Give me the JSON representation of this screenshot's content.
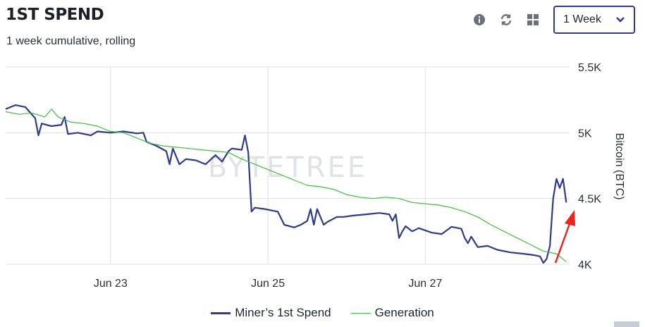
{
  "header": {
    "title": "1ST SPEND",
    "subtitle": "1 week cumulative, rolling"
  },
  "toolbar": {
    "icons": [
      "info-icon",
      "refresh-icon",
      "grid-icon"
    ],
    "range_select": {
      "value": "1 Week"
    }
  },
  "watermark": "BYTETREE",
  "chart_data": {
    "type": "line",
    "title": "1ST SPEND",
    "subtitle": "1 week cumulative, rolling",
    "ylabel": "Bitcoin (BTC)",
    "xlabel": "",
    "ylim": [
      4000,
      5500
    ],
    "yticks": [
      4000,
      4500,
      5000,
      5500
    ],
    "ytick_labels": [
      "4K",
      "4.5K",
      "5K",
      "5.5K"
    ],
    "xlim": [
      "2021-06-21T16:00",
      "2021-06-28T20:00"
    ],
    "xticks": [
      "2021-06-23T00:00",
      "2021-06-25T00:00",
      "2021-06-27T00:00"
    ],
    "xtick_labels": [
      "Jun 23",
      "Jun 25",
      "Jun 27"
    ],
    "grid": true,
    "legend_position": "bottom",
    "series": [
      {
        "name": "Miner’s 1st Spend",
        "color": "#2e3a8c",
        "points": [
          [
            "2021-06-21T16:00",
            5180
          ],
          [
            "2021-06-21T19:00",
            5210
          ],
          [
            "2021-06-21T22:00",
            5195
          ],
          [
            "2021-06-22T01:00",
            5110
          ],
          [
            "2021-06-22T02:00",
            4980
          ],
          [
            "2021-06-22T03:00",
            5070
          ],
          [
            "2021-06-22T06:00",
            5050
          ],
          [
            "2021-06-22T09:00",
            5060
          ],
          [
            "2021-06-22T10:00",
            5120
          ],
          [
            "2021-06-22T11:00",
            4990
          ],
          [
            "2021-06-22T14:00",
            5000
          ],
          [
            "2021-06-22T18:00",
            4980
          ],
          [
            "2021-06-22T20:00",
            5010
          ],
          [
            "2021-06-23T00:00",
            5000
          ],
          [
            "2021-06-23T04:00",
            5010
          ],
          [
            "2021-06-23T08:00",
            4995
          ],
          [
            "2021-06-23T10:00",
            5000
          ],
          [
            "2021-06-23T11:00",
            4930
          ],
          [
            "2021-06-23T14:00",
            4900
          ],
          [
            "2021-06-23T17:00",
            4860
          ],
          [
            "2021-06-23T18:00",
            4760
          ],
          [
            "2021-06-23T19:00",
            4880
          ],
          [
            "2021-06-23T21:00",
            4760
          ],
          [
            "2021-06-23T23:00",
            4800
          ],
          [
            "2021-06-24T02:00",
            4790
          ],
          [
            "2021-06-24T05:00",
            4760
          ],
          [
            "2021-06-24T08:00",
            4830
          ],
          [
            "2021-06-24T10:00",
            4780
          ],
          [
            "2021-06-24T12:00",
            4860
          ],
          [
            "2021-06-24T13:00",
            4880
          ],
          [
            "2021-06-24T16:00",
            4870
          ],
          [
            "2021-06-24T17:00",
            4980
          ],
          [
            "2021-06-24T18:00",
            4850
          ],
          [
            "2021-06-24T19:00",
            4400
          ],
          [
            "2021-06-24T20:00",
            4430
          ],
          [
            "2021-06-24T23:00",
            4420
          ],
          [
            "2021-06-25T03:00",
            4400
          ],
          [
            "2021-06-25T05:00",
            4300
          ],
          [
            "2021-06-25T08:00",
            4280
          ],
          [
            "2021-06-25T10:00",
            4300
          ],
          [
            "2021-06-25T12:00",
            4330
          ],
          [
            "2021-06-25T13:00",
            4420
          ],
          [
            "2021-06-25T14:00",
            4300
          ],
          [
            "2021-06-25T15:00",
            4420
          ],
          [
            "2021-06-25T17:00",
            4300
          ],
          [
            "2021-06-25T18:00",
            4320
          ],
          [
            "2021-06-25T21:00",
            4360
          ],
          [
            "2021-06-25T23:00",
            4360
          ],
          [
            "2021-06-26T02:00",
            4370
          ],
          [
            "2021-06-26T06:00",
            4380
          ],
          [
            "2021-06-26T10:00",
            4390
          ],
          [
            "2021-06-26T13:00",
            4380
          ],
          [
            "2021-06-26T14:00",
            4330
          ],
          [
            "2021-06-26T15:00",
            4380
          ],
          [
            "2021-06-26T16:00",
            4200
          ],
          [
            "2021-06-26T17:00",
            4250
          ],
          [
            "2021-06-26T18:00",
            4290
          ],
          [
            "2021-06-26T20:00",
            4250
          ],
          [
            "2021-06-26T22:00",
            4275
          ],
          [
            "2021-06-27T02:00",
            4240
          ],
          [
            "2021-06-27T05:00",
            4230
          ],
          [
            "2021-06-27T08:00",
            4285
          ],
          [
            "2021-06-27T11:00",
            4270
          ],
          [
            "2021-06-27T12:00",
            4200
          ],
          [
            "2021-06-27T13:00",
            4160
          ],
          [
            "2021-06-27T14:00",
            4210
          ],
          [
            "2021-06-27T16:00",
            4130
          ],
          [
            "2021-06-27T19:00",
            4140
          ],
          [
            "2021-06-27T22:00",
            4110
          ],
          [
            "2021-06-28T02:00",
            4090
          ],
          [
            "2021-06-28T06:00",
            4080
          ],
          [
            "2021-06-28T09:00",
            4070
          ],
          [
            "2021-06-28T11:00",
            4060
          ],
          [
            "2021-06-28T12:00",
            4010
          ],
          [
            "2021-06-28T13:00",
            4040
          ],
          [
            "2021-06-28T14:00",
            4140
          ],
          [
            "2021-06-28T15:00",
            4500
          ],
          [
            "2021-06-28T16:00",
            4650
          ],
          [
            "2021-06-28T17:00",
            4580
          ],
          [
            "2021-06-28T18:00",
            4650
          ],
          [
            "2021-06-28T19:00",
            4470
          ]
        ]
      },
      {
        "name": "Generation",
        "color": "#3fbd3f",
        "points": [
          [
            "2021-06-21T16:00",
            5160
          ],
          [
            "2021-06-21T20:00",
            5140
          ],
          [
            "2021-06-22T00:00",
            5150
          ],
          [
            "2021-06-22T04:00",
            5120
          ],
          [
            "2021-06-22T06:00",
            5180
          ],
          [
            "2021-06-22T08:00",
            5120
          ],
          [
            "2021-06-22T12:00",
            5080
          ],
          [
            "2021-06-22T16:00",
            5070
          ],
          [
            "2021-06-22T20:00",
            5050
          ],
          [
            "2021-06-23T00:00",
            5010
          ],
          [
            "2021-06-23T04:00",
            5000
          ],
          [
            "2021-06-23T08:00",
            4960
          ],
          [
            "2021-06-23T12:00",
            4920
          ],
          [
            "2021-06-23T16:00",
            4900
          ],
          [
            "2021-06-23T20:00",
            4890
          ],
          [
            "2021-06-24T00:00",
            4880
          ],
          [
            "2021-06-24T04:00",
            4870
          ],
          [
            "2021-06-24T08:00",
            4860
          ],
          [
            "2021-06-24T12:00",
            4850
          ],
          [
            "2021-06-24T16:00",
            4800
          ],
          [
            "2021-06-24T20:00",
            4760
          ],
          [
            "2021-06-25T00:00",
            4720
          ],
          [
            "2021-06-25T04:00",
            4680
          ],
          [
            "2021-06-25T08:00",
            4640
          ],
          [
            "2021-06-25T12:00",
            4600
          ],
          [
            "2021-06-25T16:00",
            4590
          ],
          [
            "2021-06-25T20:00",
            4570
          ],
          [
            "2021-06-26T00:00",
            4530
          ],
          [
            "2021-06-26T04:00",
            4510
          ],
          [
            "2021-06-26T08:00",
            4500
          ],
          [
            "2021-06-26T12:00",
            4510
          ],
          [
            "2021-06-26T16:00",
            4500
          ],
          [
            "2021-06-26T20:00",
            4470
          ],
          [
            "2021-06-27T00:00",
            4460
          ],
          [
            "2021-06-27T04:00",
            4450
          ],
          [
            "2021-06-27T08:00",
            4430
          ],
          [
            "2021-06-27T12:00",
            4400
          ],
          [
            "2021-06-27T16:00",
            4360
          ],
          [
            "2021-06-27T20:00",
            4300
          ],
          [
            "2021-06-28T00:00",
            4250
          ],
          [
            "2021-06-28T04:00",
            4200
          ],
          [
            "2021-06-28T08:00",
            4150
          ],
          [
            "2021-06-28T12:00",
            4100
          ],
          [
            "2021-06-28T16:00",
            4080
          ],
          [
            "2021-06-28T19:00",
            4020
          ]
        ]
      }
    ]
  }
}
